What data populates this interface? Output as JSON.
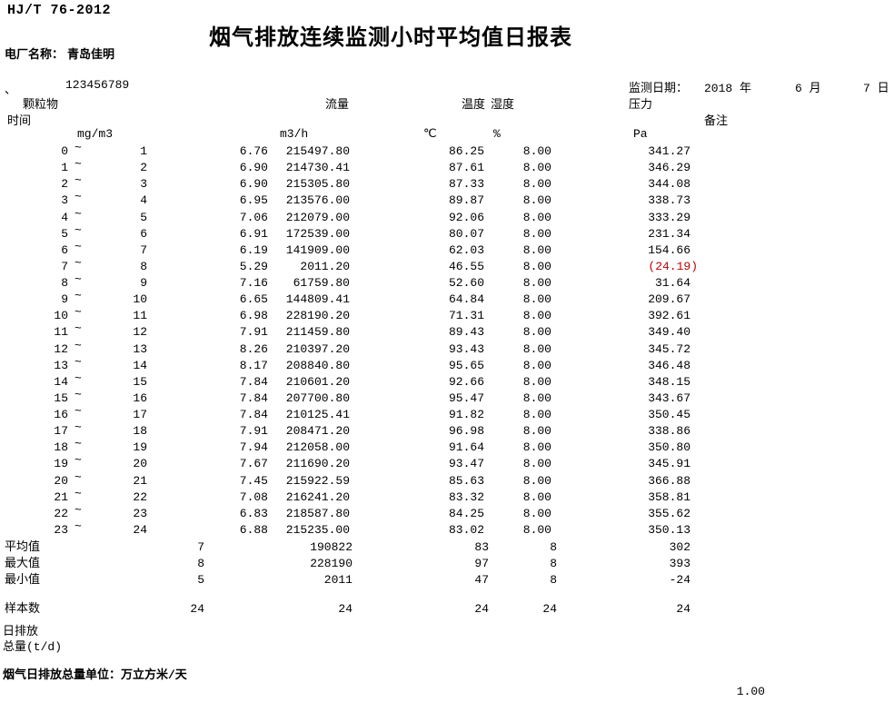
{
  "doc": {
    "standard": "HJ/T 76-2012",
    "title": "烟气排放连续监测小时平均值日报表",
    "plant_label": "电厂名称：",
    "plant_name": "青岛佳明",
    "list_mark": "、",
    "serial": "123456789",
    "date_label": "监测日期：",
    "date_year": "2018 年",
    "date_month": "6 月",
    "date_day": "7 日"
  },
  "table": {
    "col_time": "时间",
    "col_particulate": "颗粒物",
    "col_flow": "流量",
    "col_temperature": "温度",
    "col_humidity": "湿度",
    "col_pressure": "压力",
    "col_remark": "备注",
    "unit_particulate": "mg/m3",
    "unit_flow": "m3/h",
    "unit_temperature": "℃",
    "unit_humidity": "%",
    "unit_pressure": "Pa",
    "tilde": "~",
    "rows": [
      {
        "from": "0",
        "to": "1",
        "pm": "6.76",
        "flow": "215497.80",
        "temp": "86.25",
        "hum": "8.00",
        "press": "341.27",
        "alert": false
      },
      {
        "from": "1",
        "to": "2",
        "pm": "6.90",
        "flow": "214730.41",
        "temp": "87.61",
        "hum": "8.00",
        "press": "346.29",
        "alert": false
      },
      {
        "from": "2",
        "to": "3",
        "pm": "6.90",
        "flow": "215305.80",
        "temp": "87.33",
        "hum": "8.00",
        "press": "344.08",
        "alert": false
      },
      {
        "from": "3",
        "to": "4",
        "pm": "6.95",
        "flow": "213576.00",
        "temp": "89.87",
        "hum": "8.00",
        "press": "338.73",
        "alert": false
      },
      {
        "from": "4",
        "to": "5",
        "pm": "7.06",
        "flow": "212079.00",
        "temp": "92.06",
        "hum": "8.00",
        "press": "333.29",
        "alert": false
      },
      {
        "from": "5",
        "to": "6",
        "pm": "6.91",
        "flow": "172539.00",
        "temp": "80.07",
        "hum": "8.00",
        "press": "231.34",
        "alert": false
      },
      {
        "from": "6",
        "to": "7",
        "pm": "6.19",
        "flow": "141909.00",
        "temp": "62.03",
        "hum": "8.00",
        "press": "154.66",
        "alert": false
      },
      {
        "from": "7",
        "to": "8",
        "pm": "5.29",
        "flow": "2011.20",
        "temp": "46.55",
        "hum": "8.00",
        "press": "(24.19)",
        "alert": true
      },
      {
        "from": "8",
        "to": "9",
        "pm": "7.16",
        "flow": "61759.80",
        "temp": "52.60",
        "hum": "8.00",
        "press": "31.64",
        "alert": false
      },
      {
        "from": "9",
        "to": "10",
        "pm": "6.65",
        "flow": "144809.41",
        "temp": "64.84",
        "hum": "8.00",
        "press": "209.67",
        "alert": false
      },
      {
        "from": "10",
        "to": "11",
        "pm": "6.98",
        "flow": "228190.20",
        "temp": "71.31",
        "hum": "8.00",
        "press": "392.61",
        "alert": false
      },
      {
        "from": "11",
        "to": "12",
        "pm": "7.91",
        "flow": "211459.80",
        "temp": "89.43",
        "hum": "8.00",
        "press": "349.40",
        "alert": false
      },
      {
        "from": "12",
        "to": "13",
        "pm": "8.26",
        "flow": "210397.20",
        "temp": "93.43",
        "hum": "8.00",
        "press": "345.72",
        "alert": false
      },
      {
        "from": "13",
        "to": "14",
        "pm": "8.17",
        "flow": "208840.80",
        "temp": "95.65",
        "hum": "8.00",
        "press": "346.48",
        "alert": false
      },
      {
        "from": "14",
        "to": "15",
        "pm": "7.84",
        "flow": "210601.20",
        "temp": "92.66",
        "hum": "8.00",
        "press": "348.15",
        "alert": false
      },
      {
        "from": "15",
        "to": "16",
        "pm": "7.84",
        "flow": "207700.80",
        "temp": "95.47",
        "hum": "8.00",
        "press": "343.67",
        "alert": false
      },
      {
        "from": "16",
        "to": "17",
        "pm": "7.84",
        "flow": "210125.41",
        "temp": "91.82",
        "hum": "8.00",
        "press": "350.45",
        "alert": false
      },
      {
        "from": "17",
        "to": "18",
        "pm": "7.91",
        "flow": "208471.20",
        "temp": "96.98",
        "hum": "8.00",
        "press": "338.86",
        "alert": false
      },
      {
        "from": "18",
        "to": "19",
        "pm": "7.94",
        "flow": "212058.00",
        "temp": "91.64",
        "hum": "8.00",
        "press": "350.80",
        "alert": false
      },
      {
        "from": "19",
        "to": "20",
        "pm": "7.67",
        "flow": "211690.20",
        "temp": "93.47",
        "hum": "8.00",
        "press": "345.91",
        "alert": false
      },
      {
        "from": "20",
        "to": "21",
        "pm": "7.45",
        "flow": "215922.59",
        "temp": "85.63",
        "hum": "8.00",
        "press": "366.88",
        "alert": false
      },
      {
        "from": "21",
        "to": "22",
        "pm": "7.08",
        "flow": "216241.20",
        "temp": "83.32",
        "hum": "8.00",
        "press": "358.81",
        "alert": false
      },
      {
        "from": "22",
        "to": "23",
        "pm": "6.83",
        "flow": "218587.80",
        "temp": "84.25",
        "hum": "8.00",
        "press": "355.62",
        "alert": false
      },
      {
        "from": "23",
        "to": "24",
        "pm": "6.88",
        "flow": "215235.00",
        "temp": "83.02",
        "hum": "8.00",
        "press": "350.13",
        "alert": false
      }
    ],
    "summary": [
      {
        "label": "平均值",
        "pm": "7",
        "flow": "190822",
        "temp": "83",
        "hum": "8",
        "press": "302"
      },
      {
        "label": "最大值",
        "pm": "8",
        "flow": "228190",
        "temp": "97",
        "hum": "8",
        "press": "393"
      },
      {
        "label": "最小值",
        "pm": "5",
        "flow": "2011",
        "temp": "47",
        "hum": "8",
        "press": "-24"
      }
    ],
    "samples": {
      "label": "样本数",
      "pm": "24",
      "flow": "24",
      "temp": "24",
      "hum": "24",
      "press": "24"
    },
    "daily_emission_line1": "日排放",
    "daily_emission_line2": "总量(t/d)"
  },
  "footer": {
    "unit_note": "烟气日排放总量单位：万立方米/天",
    "page_number": "1.00"
  },
  "colors": {
    "alert": "#c00000",
    "text": "#000000",
    "background": "#ffffff"
  }
}
